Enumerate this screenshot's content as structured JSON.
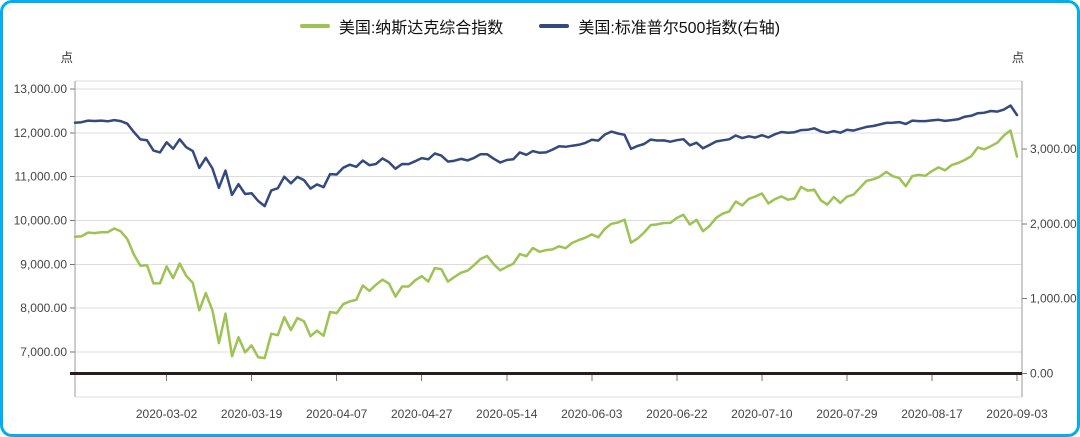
{
  "panel": {
    "border_color": "#00AEEF",
    "background": "#FFFFFF"
  },
  "chart_data": {
    "type": "line",
    "title": "",
    "legend_position": "top",
    "grid": "horizontal",
    "dates": [
      "2020-02-10",
      "2020-02-11",
      "2020-02-12",
      "2020-02-13",
      "2020-02-14",
      "2020-02-18",
      "2020-02-19",
      "2020-02-20",
      "2020-02-21",
      "2020-02-24",
      "2020-02-25",
      "2020-02-26",
      "2020-02-27",
      "2020-02-28",
      "2020-03-02",
      "2020-03-03",
      "2020-03-04",
      "2020-03-05",
      "2020-03-06",
      "2020-03-09",
      "2020-03-10",
      "2020-03-11",
      "2020-03-12",
      "2020-03-13",
      "2020-03-16",
      "2020-03-17",
      "2020-03-18",
      "2020-03-19",
      "2020-03-20",
      "2020-03-23",
      "2020-03-24",
      "2020-03-25",
      "2020-03-26",
      "2020-03-27",
      "2020-03-30",
      "2020-03-31",
      "2020-04-01",
      "2020-04-02",
      "2020-04-03",
      "2020-04-06",
      "2020-04-07",
      "2020-04-08",
      "2020-04-09",
      "2020-04-13",
      "2020-04-14",
      "2020-04-15",
      "2020-04-16",
      "2020-04-17",
      "2020-04-20",
      "2020-04-21",
      "2020-04-22",
      "2020-04-23",
      "2020-04-24",
      "2020-04-27",
      "2020-04-28",
      "2020-04-29",
      "2020-04-30",
      "2020-05-01",
      "2020-05-04",
      "2020-05-05",
      "2020-05-06",
      "2020-05-07",
      "2020-05-08",
      "2020-05-11",
      "2020-05-12",
      "2020-05-13",
      "2020-05-14",
      "2020-05-15",
      "2020-05-18",
      "2020-05-19",
      "2020-05-20",
      "2020-05-21",
      "2020-05-22",
      "2020-05-26",
      "2020-05-27",
      "2020-05-28",
      "2020-05-29",
      "2020-06-01",
      "2020-06-02",
      "2020-06-03",
      "2020-06-04",
      "2020-06-05",
      "2020-06-08",
      "2020-06-09",
      "2020-06-10",
      "2020-06-11",
      "2020-06-12",
      "2020-06-15",
      "2020-06-16",
      "2020-06-17",
      "2020-06-18",
      "2020-06-19",
      "2020-06-22",
      "2020-06-23",
      "2020-06-24",
      "2020-06-25",
      "2020-06-26",
      "2020-06-29",
      "2020-06-30",
      "2020-07-01",
      "2020-07-02",
      "2020-07-06",
      "2020-07-07",
      "2020-07-08",
      "2020-07-09",
      "2020-07-10",
      "2020-07-13",
      "2020-07-14",
      "2020-07-15",
      "2020-07-16",
      "2020-07-17",
      "2020-07-20",
      "2020-07-21",
      "2020-07-22",
      "2020-07-23",
      "2020-07-24",
      "2020-07-27",
      "2020-07-28",
      "2020-07-29",
      "2020-07-30",
      "2020-07-31",
      "2020-08-03",
      "2020-08-04",
      "2020-08-05",
      "2020-08-06",
      "2020-08-07",
      "2020-08-10",
      "2020-08-11",
      "2020-08-12",
      "2020-08-13",
      "2020-08-14",
      "2020-08-17",
      "2020-08-18",
      "2020-08-19",
      "2020-08-20",
      "2020-08-21",
      "2020-08-24",
      "2020-08-25",
      "2020-08-26",
      "2020-08-27",
      "2020-08-28",
      "2020-08-31",
      "2020-09-01",
      "2020-09-02",
      "2020-09-03"
    ],
    "x_tick_labels": [
      "2020-03-02",
      "2020-03-19",
      "2020-04-07",
      "2020-04-27",
      "2020-05-14",
      "2020-06-03",
      "2020-06-22",
      "2020-07-10",
      "2020-07-29",
      "2020-08-17",
      "2020-09-03"
    ],
    "x_tick_indices": [
      14,
      27,
      40,
      53,
      66,
      79,
      92,
      105,
      118,
      131,
      144
    ],
    "left_axis": {
      "unit": "点",
      "tick_values": [
        13000,
        12000,
        11000,
        10000,
        9000,
        8000,
        7000
      ],
      "tick_labels": [
        "13,000.00",
        "12,000.00",
        "11,000.00",
        "10,000.00",
        "9,000.00",
        "8,000.00",
        "7,000.00"
      ]
    },
    "right_axis": {
      "unit": "点",
      "tick_values": [
        3000,
        2000,
        1000,
        0
      ],
      "tick_labels": [
        "3,000.00",
        "2,000.00",
        "1,000.00",
        "0.00"
      ]
    },
    "series": [
      {
        "name": "美国:纳斯达克综合指数",
        "axis": "left",
        "color": "#9CC353",
        "values": [
          9628,
          9639,
          9726,
          9712,
          9731,
          9733,
          9817,
          9751,
          9577,
          9221,
          8966,
          8981,
          8566,
          8567,
          8952,
          8684,
          9018,
          8739,
          8576,
          7951,
          8344,
          7952,
          7202,
          7875,
          6905,
          7335,
          6990,
          7151,
          6880,
          6861,
          7418,
          7384,
          7798,
          7502,
          7774,
          7700,
          7361,
          7487,
          7373,
          7913,
          7887,
          8091,
          8154,
          8192,
          8516,
          8393,
          8532,
          8650,
          8561,
          8263,
          8495,
          8495,
          8635,
          8730,
          8608,
          8915,
          8890,
          8605,
          8711,
          8809,
          8854,
          8980,
          9121,
          9192,
          9003,
          8863,
          8944,
          9015,
          9235,
          9185,
          9376,
          9285,
          9325,
          9340,
          9412,
          9369,
          9490,
          9552,
          9608,
          9683,
          9616,
          9814,
          9925,
          9954,
          10020,
          9493,
          9589,
          9726,
          9896,
          9911,
          9943,
          9946,
          10056,
          10131,
          9909,
          10017,
          9757,
          9874,
          10059,
          10155,
          10208,
          10434,
          10344,
          10493,
          10548,
          10617,
          10391,
          10489,
          10550,
          10474,
          10503,
          10767,
          10680,
          10706,
          10461,
          10363,
          10536,
          10402,
          10543,
          10588,
          10745,
          10903,
          10941,
          10998,
          11108,
          11011,
          10968,
          10783,
          11012,
          11043,
          11019,
          11130,
          11211,
          11146,
          11265,
          11312,
          11380,
          11466,
          11665,
          11625,
          11696,
          11775,
          11940,
          12056,
          11458
        ]
      },
      {
        "name": "美国:标准普尔500指数(右轴)",
        "axis": "right",
        "color": "#34497E",
        "values": [
          3352,
          3358,
          3379,
          3374,
          3380,
          3370,
          3386,
          3373,
          3338,
          3226,
          3128,
          3116,
          2979,
          2954,
          3090,
          3003,
          3130,
          3024,
          2972,
          2747,
          2882,
          2741,
          2481,
          2711,
          2386,
          2529,
          2398,
          2409,
          2305,
          2237,
          2447,
          2476,
          2630,
          2541,
          2627,
          2585,
          2471,
          2527,
          2489,
          2664,
          2659,
          2750,
          2790,
          2762,
          2846,
          2783,
          2800,
          2875,
          2823,
          2737,
          2799,
          2798,
          2837,
          2878,
          2863,
          2940,
          2912,
          2831,
          2843,
          2868,
          2848,
          2881,
          2930,
          2930,
          2870,
          2820,
          2853,
          2864,
          2954,
          2923,
          2972,
          2949,
          2955,
          2992,
          3036,
          3030,
          3044,
          3056,
          3081,
          3123,
          3112,
          3194,
          3232,
          3207,
          3190,
          3002,
          3041,
          3067,
          3125,
          3113,
          3115,
          3098,
          3118,
          3131,
          3050,
          3084,
          3009,
          3053,
          3100,
          3116,
          3130,
          3180,
          3145,
          3170,
          3152,
          3185,
          3155,
          3198,
          3227,
          3216,
          3225,
          3252,
          3257,
          3276,
          3236,
          3216,
          3239,
          3218,
          3258,
          3246,
          3271,
          3295,
          3307,
          3328,
          3349,
          3351,
          3360,
          3334,
          3380,
          3373,
          3373,
          3382,
          3390,
          3375,
          3386,
          3397,
          3431,
          3444,
          3479,
          3485,
          3508,
          3500,
          3527,
          3581,
          3455
        ]
      }
    ],
    "colors": {
      "grid": "#DCDCDC",
      "axis_line": "#999999",
      "tick": "#777777",
      "tick_label": "#444444",
      "zero_line": "#2B1B1D"
    }
  }
}
